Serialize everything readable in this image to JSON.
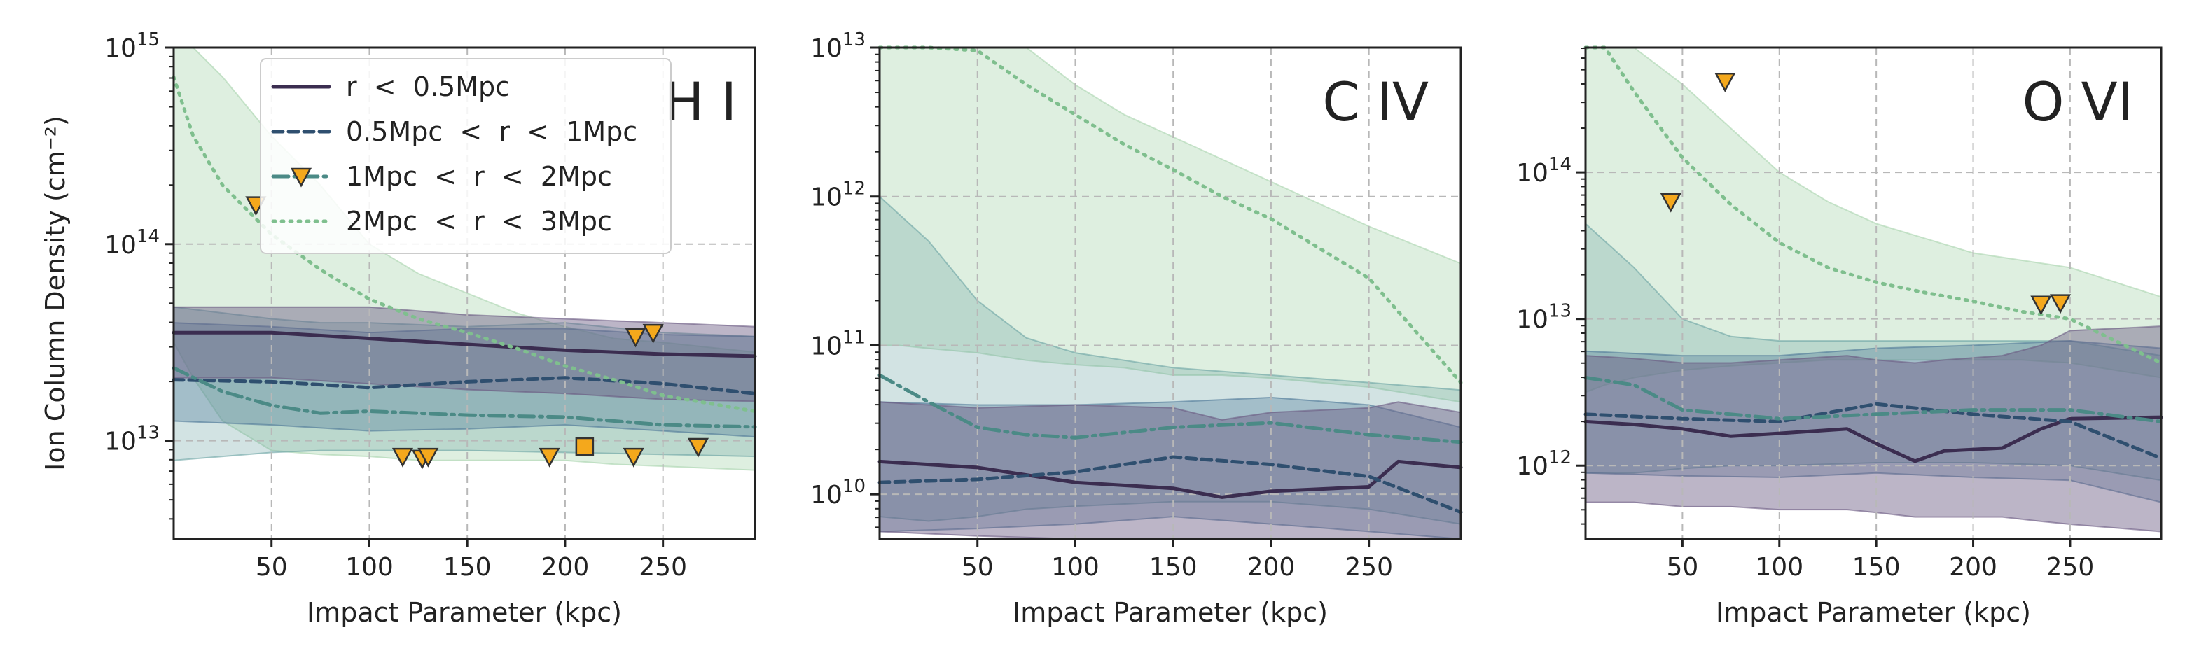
{
  "chart_data": [
    {
      "type": "line",
      "title": "H I",
      "xlabel": "Impact Parameter (kpc)",
      "ylabel": "Ion Column Density (cm⁻²)",
      "xlim": [
        0,
        297
      ],
      "ylim_log10": [
        12.5,
        15
      ],
      "y_scale": "log",
      "x_ticks": [
        50,
        100,
        150,
        200,
        250
      ],
      "x_tick_labels": [
        "50",
        "100",
        "150",
        "200",
        "250"
      ],
      "y_ticks_log10": [
        13,
        14,
        15
      ],
      "y_tick_labels": [
        {
          "base": "10",
          "exp": "13"
        },
        {
          "base": "10",
          "exp": "14"
        },
        {
          "base": "10",
          "exp": "15"
        }
      ],
      "grid": true,
      "legend_placement": "top-right",
      "legend": [
        {
          "label": "r  <  0.5Mpc",
          "series": 0,
          "marker": "none"
        },
        {
          "label": "0.5Mpc  <  r  <  1Mpc",
          "series": 1,
          "marker": "none"
        },
        {
          "label": "1Mpc  <  r  <  2Mpc",
          "series": 2,
          "marker": "triangle"
        },
        {
          "label": "2Mpc  <  r  <  3Mpc",
          "series": 3,
          "marker": "none"
        }
      ],
      "series": [
        {
          "x": [
            0,
            50,
            100,
            150,
            200,
            250,
            297
          ],
          "median_log10": [
            13.55,
            13.55,
            13.52,
            13.49,
            13.46,
            13.44,
            13.43
          ],
          "band_low_log10": [
            13.32,
            13.32,
            13.29,
            13.26,
            13.24,
            13.21,
            13.2
          ],
          "band_high_log10": [
            13.68,
            13.68,
            13.68,
            13.64,
            13.62,
            13.6,
            13.58
          ]
        },
        {
          "x": [
            0,
            50,
            100,
            150,
            200,
            250,
            297
          ],
          "median_log10": [
            13.31,
            13.3,
            13.27,
            13.3,
            13.32,
            13.29,
            13.24
          ],
          "band_low_log10": [
            13.1,
            13.08,
            13.05,
            13.06,
            13.08,
            13.05,
            13.02
          ],
          "band_high_log10": [
            13.6,
            13.58,
            13.55,
            13.57,
            13.57,
            13.54,
            13.53
          ]
        },
        {
          "x": [
            0,
            25,
            50,
            75,
            100,
            150,
            200,
            250,
            297
          ],
          "median_log10": [
            13.37,
            13.25,
            13.18,
            13.14,
            13.15,
            13.13,
            13.12,
            13.08,
            13.07
          ],
          "band_low_log10": [
            12.9,
            12.92,
            12.94,
            12.95,
            12.95,
            12.95,
            12.94,
            12.93,
            12.92
          ],
          "band_high_log10": [
            13.68,
            13.65,
            13.62,
            13.6,
            13.6,
            13.58,
            13.6,
            13.55,
            13.53
          ]
        },
        {
          "x": [
            0,
            10,
            25,
            50,
            75,
            100,
            125,
            150,
            175,
            200,
            225,
            250,
            297
          ],
          "median_log10": [
            14.85,
            14.55,
            14.3,
            14.05,
            13.87,
            13.72,
            13.62,
            13.55,
            13.47,
            13.38,
            13.31,
            13.23,
            13.15
          ],
          "band_low_log10": [
            13.5,
            13.32,
            13.1,
            12.95,
            12.93,
            12.92,
            12.9,
            12.9,
            12.9,
            12.9,
            12.88,
            12.87,
            12.85
          ],
          "band_high_log10": [
            15.3,
            15.0,
            14.85,
            14.55,
            14.3,
            14.0,
            13.85,
            13.75,
            13.65,
            13.58,
            13.52,
            13.5,
            13.45
          ]
        }
      ],
      "observations": [
        {
          "x": 42,
          "y_log10": 14.2,
          "marker": "triangle"
        },
        {
          "x": 117,
          "y_log10": 12.92,
          "marker": "triangle"
        },
        {
          "x": 127,
          "y_log10": 12.91,
          "marker": "triangle"
        },
        {
          "x": 130,
          "y_log10": 12.92,
          "marker": "triangle"
        },
        {
          "x": 192,
          "y_log10": 12.92,
          "marker": "triangle"
        },
        {
          "x": 210,
          "y_log10": 12.97,
          "marker": "square"
        },
        {
          "x": 235,
          "y_log10": 12.92,
          "marker": "triangle"
        },
        {
          "x": 236,
          "y_log10": 13.53,
          "marker": "triangle"
        },
        {
          "x": 245,
          "y_log10": 13.55,
          "marker": "triangle"
        },
        {
          "x": 268,
          "y_log10": 12.97,
          "marker": "triangle"
        }
      ]
    },
    {
      "type": "line",
      "title": "C IV",
      "xlabel": "Impact Parameter (kpc)",
      "ylabel": "",
      "xlim": [
        0,
        297
      ],
      "ylim_log10": [
        9.7,
        13
      ],
      "y_scale": "log",
      "x_ticks": [
        50,
        100,
        150,
        200,
        250
      ],
      "x_tick_labels": [
        "50",
        "100",
        "150",
        "200",
        "250"
      ],
      "y_ticks_log10": [
        10,
        11,
        12,
        13
      ],
      "y_tick_labels": [
        {
          "base": "10",
          "exp": "10"
        },
        {
          "base": "10",
          "exp": "11"
        },
        {
          "base": "10",
          "exp": "12"
        },
        {
          "base": "10",
          "exp": "13"
        }
      ],
      "grid": true,
      "series": [
        {
          "x": [
            0,
            50,
            100,
            150,
            175,
            200,
            250,
            265,
            297
          ],
          "median_log10": [
            10.22,
            10.18,
            10.08,
            10.04,
            9.98,
            10.02,
            10.05,
            10.22,
            10.18
          ],
          "band_low_log10": [
            9.75,
            9.72,
            9.68,
            9.65,
            9.62,
            9.6,
            9.55,
            9.52,
            9.5
          ],
          "band_high_log10": [
            10.62,
            10.58,
            10.6,
            10.58,
            10.5,
            10.55,
            10.58,
            10.62,
            10.55
          ]
        },
        {
          "x": [
            0,
            50,
            100,
            150,
            200,
            250,
            297
          ],
          "median_log10": [
            10.08,
            10.1,
            10.15,
            10.25,
            10.2,
            10.12,
            9.88
          ],
          "band_low_log10": [
            9.75,
            9.77,
            9.8,
            9.85,
            9.8,
            9.75,
            9.65
          ],
          "band_high_log10": [
            10.62,
            10.6,
            10.6,
            10.62,
            10.65,
            10.6,
            10.45
          ]
        },
        {
          "x": [
            0,
            25,
            50,
            75,
            100,
            150,
            200,
            250,
            297
          ],
          "median_log10": [
            10.8,
            10.62,
            10.45,
            10.4,
            10.38,
            10.45,
            10.48,
            10.4,
            10.35
          ],
          "band_low_log10": [
            9.85,
            9.82,
            9.85,
            9.9,
            9.92,
            9.95,
            9.95,
            9.9,
            9.8
          ],
          "band_high_log10": [
            12.0,
            11.7,
            11.3,
            11.05,
            10.95,
            10.85,
            10.8,
            10.75,
            10.7
          ]
        },
        {
          "x": [
            0,
            10,
            25,
            50,
            75,
            100,
            125,
            150,
            175,
            200,
            225,
            250,
            297
          ],
          "median_log10": [
            13.6,
            13.4,
            13.2,
            12.98,
            12.75,
            12.55,
            12.35,
            12.18,
            12.0,
            11.85,
            11.65,
            11.45,
            10.75
          ],
          "band_low_log10": [
            11.0,
            11.0,
            10.98,
            10.95,
            10.9,
            10.87,
            10.85,
            10.8,
            10.8,
            10.78,
            10.75,
            10.72,
            10.62
          ],
          "band_high_log10": [
            13.8,
            13.5,
            13.4,
            13.2,
            13.0,
            12.75,
            12.55,
            12.4,
            12.25,
            12.1,
            11.95,
            11.8,
            11.55
          ]
        }
      ],
      "observations": []
    },
    {
      "type": "line",
      "title": "O VI",
      "xlabel": "Impact Parameter (kpc)",
      "ylabel": "",
      "xlim": [
        0,
        297
      ],
      "ylim_log10": [
        11.5,
        14.85
      ],
      "y_scale": "log",
      "x_ticks": [
        50,
        100,
        150,
        200,
        250
      ],
      "x_tick_labels": [
        "50",
        "100",
        "150",
        "200",
        "250"
      ],
      "y_ticks_log10": [
        12,
        13,
        14
      ],
      "y_tick_labels": [
        {
          "base": "10",
          "exp": "12"
        },
        {
          "base": "10",
          "exp": "13"
        },
        {
          "base": "10",
          "exp": "14"
        }
      ],
      "grid": true,
      "series": [
        {
          "x": [
            0,
            25,
            50,
            75,
            100,
            135,
            150,
            170,
            185,
            215,
            235,
            250,
            297
          ],
          "median_log10": [
            12.3,
            12.28,
            12.25,
            12.2,
            12.22,
            12.25,
            12.15,
            12.03,
            12.1,
            12.12,
            12.25,
            12.32,
            12.33
          ],
          "band_low_log10": [
            11.75,
            11.75,
            11.72,
            11.72,
            11.7,
            11.7,
            11.68,
            11.65,
            11.65,
            11.65,
            11.62,
            11.6,
            11.55
          ],
          "band_high_log10": [
            12.75,
            12.73,
            12.7,
            12.7,
            12.72,
            12.75,
            12.72,
            12.7,
            12.72,
            12.75,
            12.82,
            12.92,
            12.95
          ]
        },
        {
          "x": [
            0,
            50,
            100,
            150,
            200,
            250,
            297
          ],
          "median_log10": [
            12.35,
            12.32,
            12.3,
            12.42,
            12.35,
            12.3,
            12.05
          ],
          "band_low_log10": [
            11.95,
            11.93,
            11.92,
            11.95,
            11.92,
            11.9,
            11.75
          ],
          "band_high_log10": [
            12.78,
            12.75,
            12.75,
            12.8,
            12.82,
            12.85,
            12.8
          ]
        },
        {
          "x": [
            0,
            25,
            50,
            75,
            100,
            150,
            200,
            250,
            297
          ],
          "median_log10": [
            12.6,
            12.55,
            12.38,
            12.35,
            12.32,
            12.35,
            12.38,
            12.38,
            12.3
          ],
          "band_low_log10": [
            11.95,
            11.95,
            11.98,
            12.0,
            12.0,
            12.02,
            12.02,
            12.0,
            11.9
          ],
          "band_high_log10": [
            13.65,
            13.35,
            13.0,
            12.88,
            12.85,
            12.85,
            12.85,
            12.85,
            12.75
          ]
        },
        {
          "x": [
            0,
            10,
            25,
            50,
            75,
            100,
            125,
            150,
            175,
            200,
            225,
            250,
            297
          ],
          "median_log10": [
            15.2,
            14.9,
            14.55,
            14.1,
            13.78,
            13.52,
            13.35,
            13.25,
            13.18,
            13.12,
            13.05,
            13.0,
            12.7
          ],
          "band_low_log10": [
            12.5,
            12.55,
            12.6,
            12.65,
            12.68,
            12.7,
            12.72,
            12.72,
            12.72,
            12.72,
            12.72,
            12.7,
            12.6
          ],
          "band_high_log10": [
            15.5,
            15.2,
            14.9,
            14.6,
            14.3,
            14.0,
            13.8,
            13.65,
            13.55,
            13.45,
            13.4,
            13.35,
            13.15
          ]
        }
      ],
      "observations": [
        {
          "x": 44,
          "y_log10": 13.8,
          "marker": "triangle"
        },
        {
          "x": 72,
          "y_log10": 14.62,
          "marker": "triangle"
        },
        {
          "x": 235,
          "y_log10": 13.1,
          "marker": "triangle"
        },
        {
          "x": 245,
          "y_log10": 13.11,
          "marker": "triangle"
        }
      ]
    }
  ],
  "styles": {
    "series_colors": [
      "#3b2d50",
      "#2f4f6f",
      "#4b8a86",
      "#7fbf8e"
    ],
    "band_colors": [
      "#6a5a82",
      "#4e7898",
      "#6aa3a3",
      "#a8d4ae"
    ],
    "band_opacity": [
      0.45,
      0.35,
      0.3,
      0.38
    ],
    "dash": [
      "",
      "14,8",
      "22,8,4,8",
      "3,9"
    ],
    "marker_fill": "#f4a81c",
    "marker_stroke": "#333333",
    "grid_color": "#b8b8b8"
  }
}
